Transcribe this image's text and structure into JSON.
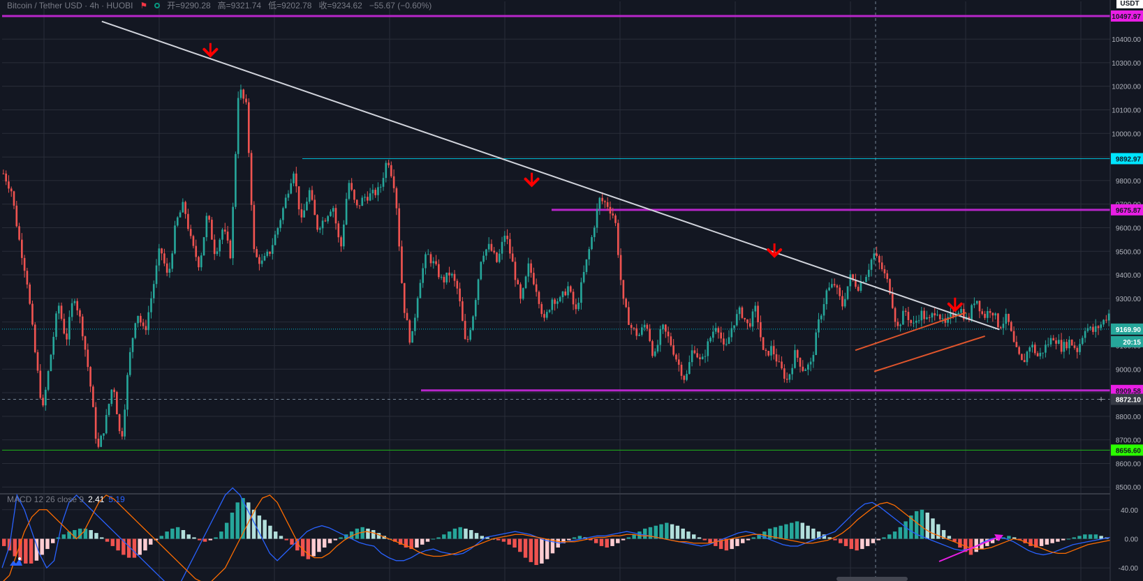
{
  "header": {
    "symbol": "Bitcoin / Tether USD · 4h · HUOBI",
    "open": "开=9290.28",
    "high": "高=9321.74",
    "low": "低=9202.78",
    "close": "收=9234.62",
    "change": "−55.67 (−0.60%)"
  },
  "currency_badge": "USDT",
  "colors": {
    "background": "#131722",
    "grid": "#2a2e39",
    "bull": "#26a69a",
    "bear": "#ef5350",
    "trendline": "#d1d4dc",
    "magenta": "#b726c9",
    "magenta_badge": "#e91ee5",
    "cyan": "#00bcd4",
    "green": "#21b61a",
    "green_badge": "#2bff00",
    "channel": "#e0552c",
    "arrow": "#ff0000",
    "macd_line": "#2962ff",
    "signal_line": "#ff6d00"
  },
  "macd_header": {
    "name": "MACD 12 26 close 9",
    "value1": "2.41",
    "value2": "5.19"
  },
  "chart_data": [
    {
      "type": "candlestick",
      "title": "Bitcoin / Tether USD · 4h · HUOBI",
      "ylim": [
        8480,
        10560
      ],
      "y_ticks": [
        8500,
        8600,
        8700,
        8800,
        8900,
        9000,
        9100,
        9200,
        9300,
        9400,
        9500,
        9600,
        9700,
        9800,
        9900,
        10000,
        10100,
        10200,
        10300,
        10400
      ],
      "y_tick_labels": [
        "8500.00",
        "8600.00",
        "8700.00",
        "8800.00",
        "",
        "9000.00",
        "9100.00",
        "",
        "9300.00",
        "9400.00",
        "9500.00",
        "9600.00",
        "9700.00",
        "9800.00",
        "",
        "10000.00",
        "10100.00",
        "10200.00",
        "10300.00",
        "10400.00"
      ],
      "grid": true,
      "price_path": [
        9830,
        9760,
        9550,
        9380,
        9080,
        8820,
        9050,
        9280,
        9120,
        9320,
        9180,
        8960,
        8650,
        8770,
        8950,
        8680,
        9030,
        9250,
        9150,
        9330,
        9520,
        9380,
        9620,
        9700,
        9530,
        9440,
        9660,
        9490,
        9600,
        9480,
        10200,
        10110,
        9480,
        9450,
        9500,
        9600,
        9720,
        9850,
        9620,
        9760,
        9600,
        9640,
        9700,
        9500,
        9800,
        9680,
        9730,
        9740,
        9760,
        9900,
        9760,
        9280,
        9100,
        9360,
        9490,
        9440,
        9370,
        9410,
        9330,
        9090,
        9250,
        9490,
        9520,
        9450,
        9580,
        9440,
        9280,
        9440,
        9340,
        9200,
        9300,
        9290,
        9350,
        9240,
        9400,
        9550,
        9720,
        9700,
        9640,
        9290,
        9180,
        9140,
        9200,
        9040,
        9180,
        9120,
        9030,
        8950,
        9100,
        9020,
        9120,
        9200,
        9070,
        9190,
        9250,
        9180,
        9260,
        9050,
        9090,
        9010,
        8950,
        9070,
        9000,
        9020,
        9200,
        9330,
        9360,
        9270,
        9390,
        9350,
        9400,
        9490,
        9430,
        9350,
        9170,
        9250,
        9180,
        9240,
        9200,
        9260,
        9180,
        9230,
        9260,
        9200,
        9310,
        9220,
        9260,
        9180,
        9220,
        9090,
        9020,
        9110,
        9050,
        9100,
        9140,
        9090,
        9120,
        9080,
        9180,
        9160,
        9190,
        9235
      ],
      "horizontal_levels": [
        {
          "price": 10497.97,
          "label": "10497.97",
          "color": "magenta"
        },
        {
          "price": 9892.97,
          "label": "9892.97",
          "color": "cyan"
        },
        {
          "price": 9675.87,
          "label": "9675.87",
          "color": "magenta"
        },
        {
          "price": 9169.9,
          "label": "9169.90",
          "color": "cyan"
        },
        {
          "price": 8909.58,
          "label": "8909.58",
          "color": "magenta"
        },
        {
          "price": 8872.1,
          "label": "8872.10",
          "color": "crosshair"
        },
        {
          "price": 8656.6,
          "label": "8656.60",
          "color": "green"
        }
      ],
      "countdown_label": "20:15",
      "annotations": {
        "descending_trendline": [
          [
            0.09,
            10475
          ],
          [
            0.9,
            9168
          ]
        ],
        "rising_channel_upper": [
          [
            0.77,
            9080
          ],
          [
            0.87,
            9240
          ]
        ],
        "rising_channel_lower": [
          [
            0.787,
            8990
          ],
          [
            0.887,
            9140
          ]
        ],
        "sell_arrows": [
          {
            "x": 0.188,
            "price": 10330
          },
          {
            "x": 0.478,
            "price": 9780
          },
          {
            "x": 0.697,
            "price": 9480
          },
          {
            "x": 0.86,
            "price": 9250
          }
        ]
      }
    },
    {
      "type": "bar",
      "title": "MACD 12 26 close 9",
      "ylim": [
        -58,
        58
      ],
      "y_ticks": [
        40,
        0,
        -40
      ],
      "y_tick_labels": [
        "40.00",
        "0.00",
        "-40.00"
      ],
      "grid": true,
      "histogram": [
        -10,
        -16,
        -24,
        -30,
        -34,
        -34,
        -30,
        -22,
        -14,
        -6,
        2,
        6,
        10,
        12,
        14,
        14,
        12,
        8,
        2,
        -4,
        -10,
        -16,
        -22,
        -26,
        -26,
        -22,
        -16,
        -8,
        -2,
        4,
        10,
        14,
        16,
        12,
        6,
        2,
        -2,
        -4,
        -2,
        2,
        10,
        22,
        36,
        50,
        56,
        50,
        40,
        32,
        26,
        18,
        10,
        4,
        -2,
        -8,
        -16,
        -24,
        -28,
        -24,
        -18,
        -12,
        -6,
        -2,
        2,
        6,
        10,
        14,
        16,
        14,
        12,
        8,
        4,
        0,
        -4,
        -8,
        -12,
        -14,
        -12,
        -8,
        -4,
        0,
        2,
        6,
        10,
        14,
        16,
        14,
        12,
        8,
        4,
        2,
        0,
        -2,
        -4,
        -8,
        -12,
        -18,
        -26,
        -32,
        -36,
        -34,
        -28,
        -20,
        -12,
        -6,
        -2,
        2,
        4,
        2,
        -2,
        -6,
        -10,
        -12,
        -10,
        -6,
        -2,
        2,
        6,
        10,
        14,
        16,
        18,
        20,
        22,
        20,
        18,
        14,
        10,
        6,
        2,
        -2,
        -6,
        -10,
        -14,
        -16,
        -14,
        -10,
        -6,
        -2,
        2,
        6,
        10,
        14,
        16,
        18,
        20,
        22,
        24,
        22,
        18,
        14,
        10,
        6,
        2,
        -2,
        -6,
        -10,
        -14,
        -16,
        -14,
        -10,
        -6,
        -2,
        2,
        6,
        10,
        16,
        24,
        32,
        38,
        40,
        36,
        28,
        20,
        12,
        4,
        -4,
        -12,
        -18,
        -22,
        -18,
        -14,
        -10,
        -6,
        -2,
        2,
        4,
        2,
        -2,
        -6,
        -10,
        -12,
        -10,
        -8,
        -6,
        -4,
        -2,
        0,
        2,
        4,
        6,
        6,
        6,
        4,
        2
      ],
      "macd_line": [
        -40,
        -10,
        60,
        40,
        10,
        -20,
        -40,
        -30,
        20,
        50,
        60,
        50,
        40,
        30,
        20,
        10,
        0,
        -10,
        -20,
        -30,
        -40,
        -50,
        -60,
        -70,
        -60,
        -40,
        -20,
        0,
        20,
        40,
        60,
        70,
        60,
        40,
        20,
        0,
        -20,
        -30,
        -20,
        -10,
        0,
        10,
        15,
        18,
        15,
        10,
        5,
        0,
        -5,
        -8,
        -10,
        -20,
        -26,
        -30,
        -30,
        -26,
        -20,
        -16,
        -14,
        -18,
        -20,
        -22,
        -20,
        -14,
        -6,
        2,
        4,
        6,
        8,
        10,
        8,
        6,
        2,
        -2,
        -4,
        -6,
        -4,
        -2,
        0,
        2,
        4,
        4,
        6,
        8,
        10,
        8,
        6,
        4,
        2,
        0,
        -2,
        -4,
        -6,
        -8,
        -10,
        -8,
        -4,
        0,
        4,
        8,
        10,
        8,
        4,
        0,
        -4,
        -8,
        -10,
        -10,
        -6,
        -2,
        2,
        6,
        10,
        20,
        30,
        40,
        48,
        50,
        44,
        36,
        28,
        20,
        12,
        6,
        2,
        -2,
        -6,
        -10,
        -14,
        -16,
        -14,
        -10,
        -4,
        0,
        2,
        0,
        -4,
        -10,
        -16,
        -20,
        -22,
        -20,
        -16,
        -12,
        -8,
        -6,
        -4,
        -2,
        0,
        2
      ],
      "signal_line": [
        -60,
        -50,
        -20,
        10,
        30,
        40,
        40,
        30,
        20,
        10,
        0,
        10,
        30,
        50,
        60,
        55,
        45,
        35,
        25,
        15,
        5,
        -5,
        -15,
        -25,
        -35,
        -45,
        -55,
        -60,
        -60,
        -50,
        -40,
        -20,
        0,
        20,
        40,
        56,
        60,
        50,
        30,
        10,
        -10,
        -20,
        -26,
        -26,
        -20,
        -10,
        -2,
        4,
        8,
        10,
        8,
        4,
        0,
        -4,
        -8,
        -12,
        -18,
        -22,
        -24,
        -24,
        -22,
        -20,
        -16,
        -12,
        -8,
        -4,
        0,
        2,
        4,
        6,
        6,
        4,
        2,
        0,
        -2,
        -4,
        -4,
        -4,
        -2,
        0,
        2,
        2,
        4,
        4,
        6,
        6,
        4,
        4,
        2,
        0,
        -2,
        -4,
        -4,
        -6,
        -6,
        -6,
        -4,
        -2,
        0,
        2,
        4,
        6,
        6,
        4,
        2,
        0,
        -2,
        -4,
        -6,
        -6,
        -4,
        -2,
        2,
        8,
        16,
        26,
        34,
        42,
        48,
        50,
        46,
        38,
        30,
        22,
        14,
        8,
        4,
        0,
        -4,
        -8,
        -12,
        -14,
        -14,
        -12,
        -8,
        -4,
        0,
        -2,
        -6,
        -10,
        -14,
        -18,
        -20,
        -20,
        -16,
        -12,
        -8,
        -6,
        -4,
        -2
      ]
    }
  ]
}
